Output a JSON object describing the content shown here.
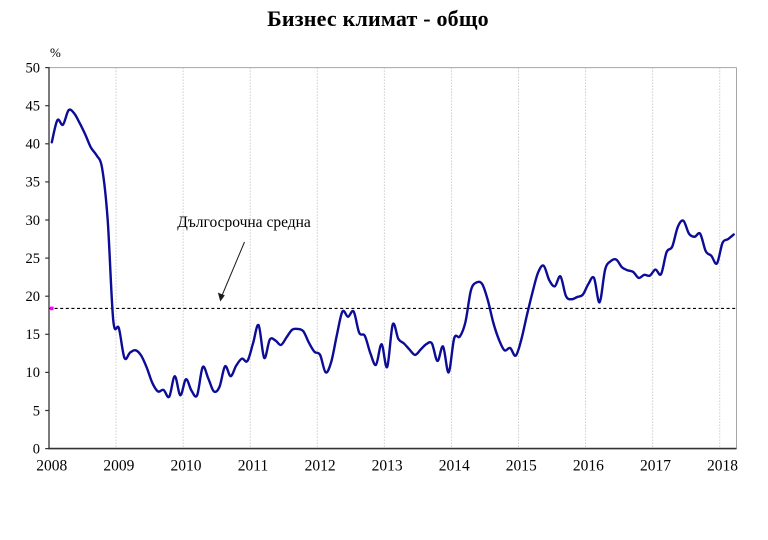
{
  "chart_data": {
    "type": "line",
    "title": "Бизнес климат - общо",
    "unit_label": "%",
    "x_tick_labels": [
      "2008",
      "2009",
      "2010",
      "2011",
      "2012",
      "2013",
      "2014",
      "2015",
      "2016",
      "2017",
      "2018"
    ],
    "y_ticks": [
      0,
      5,
      10,
      15,
      20,
      25,
      30,
      35,
      40,
      45,
      50
    ],
    "ylim": [
      0,
      50
    ],
    "grid": "vertical-dotted",
    "legend": "none",
    "series": [
      {
        "name": "Бизнес климат - общо",
        "color": "#0c0c96",
        "months": [
          "2008-01",
          "2008-02",
          "2008-03",
          "2008-04",
          "2008-05",
          "2008-06",
          "2008-07",
          "2008-08",
          "2008-09",
          "2008-10",
          "2008-11",
          "2008-12",
          "2009-01",
          "2009-02",
          "2009-03",
          "2009-04",
          "2009-05",
          "2009-06",
          "2009-07",
          "2009-08",
          "2009-09",
          "2009-10",
          "2009-11",
          "2009-12",
          "2010-01",
          "2010-02",
          "2010-03",
          "2010-04",
          "2010-05",
          "2010-06",
          "2010-07",
          "2010-08",
          "2010-09",
          "2010-10",
          "2010-11",
          "2010-12",
          "2011-01",
          "2011-02",
          "2011-03",
          "2011-04",
          "2011-05",
          "2011-06",
          "2011-07",
          "2011-08",
          "2011-09",
          "2011-10",
          "2011-11",
          "2011-12",
          "2012-01",
          "2012-02",
          "2012-03",
          "2012-04",
          "2012-05",
          "2012-06",
          "2012-07",
          "2012-08",
          "2012-09",
          "2012-10",
          "2012-11",
          "2012-12",
          "2013-01",
          "2013-02",
          "2013-03",
          "2013-04",
          "2013-05",
          "2013-06",
          "2013-07",
          "2013-08",
          "2013-09",
          "2013-10",
          "2013-11",
          "2013-12",
          "2014-01",
          "2014-02",
          "2014-03",
          "2014-04",
          "2014-05",
          "2014-06",
          "2014-07",
          "2014-08",
          "2014-09",
          "2014-10",
          "2014-11",
          "2014-12",
          "2015-01",
          "2015-02",
          "2015-03",
          "2015-04",
          "2015-05",
          "2015-06",
          "2015-07",
          "2015-08",
          "2015-09",
          "2015-10",
          "2015-11",
          "2015-12",
          "2016-01",
          "2016-02",
          "2016-03",
          "2016-04",
          "2016-05",
          "2016-06",
          "2016-07",
          "2016-08",
          "2016-09",
          "2016-10",
          "2016-11",
          "2016-12",
          "2017-01",
          "2017-02",
          "2017-03",
          "2017-04",
          "2017-05",
          "2017-06",
          "2017-07",
          "2017-08",
          "2017-09",
          "2017-10",
          "2017-11",
          "2017-12",
          "2018-01",
          "2018-02",
          "2018-03"
        ],
        "values": [
          40.2,
          43.1,
          42.5,
          44.4,
          44.0,
          42.7,
          41.2,
          39.5,
          38.5,
          36.8,
          30.0,
          16.8,
          15.8,
          11.9,
          12.6,
          12.9,
          12.2,
          10.6,
          8.6,
          7.5,
          7.7,
          6.8,
          9.5,
          7.0,
          9.1,
          7.6,
          7.0,
          10.7,
          9.2,
          7.5,
          8.1,
          10.8,
          9.5,
          10.9,
          11.8,
          11.5,
          13.8,
          16.2,
          11.9,
          14.3,
          14.2,
          13.6,
          14.6,
          15.6,
          15.7,
          15.4,
          13.9,
          12.7,
          12.3,
          10.0,
          11.4,
          14.9,
          18.0,
          17.3,
          18.0,
          15.2,
          14.8,
          12.5,
          11.0,
          13.7,
          10.7,
          16.3,
          14.4,
          13.8,
          13.0,
          12.3,
          13.0,
          13.7,
          13.8,
          11.5,
          13.4,
          10.0,
          14.5,
          14.7,
          16.6,
          20.8,
          21.8,
          21.6,
          19.5,
          16.5,
          14.3,
          12.9,
          13.2,
          12.2,
          14.3,
          17.5,
          20.5,
          23.1,
          24.0,
          22.1,
          21.3,
          22.6,
          20.0,
          19.6,
          19.9,
          20.2,
          21.6,
          22.4,
          19.2,
          23.5,
          24.6,
          24.8,
          23.8,
          23.4,
          23.2,
          22.4,
          22.8,
          22.7,
          23.5,
          22.9,
          25.8,
          26.5,
          29.1,
          29.9,
          28.2,
          27.8,
          28.2,
          25.9,
          25.3,
          24.3,
          27.0,
          27.5,
          28.1
        ]
      }
    ],
    "average_line": {
      "label": "Дългосрочна средна",
      "value": 18.4,
      "style": "dashed",
      "color": "#000000",
      "marker_color": "#ff00ff"
    }
  },
  "annotation": {
    "text": "Дългосрочна средна"
  }
}
